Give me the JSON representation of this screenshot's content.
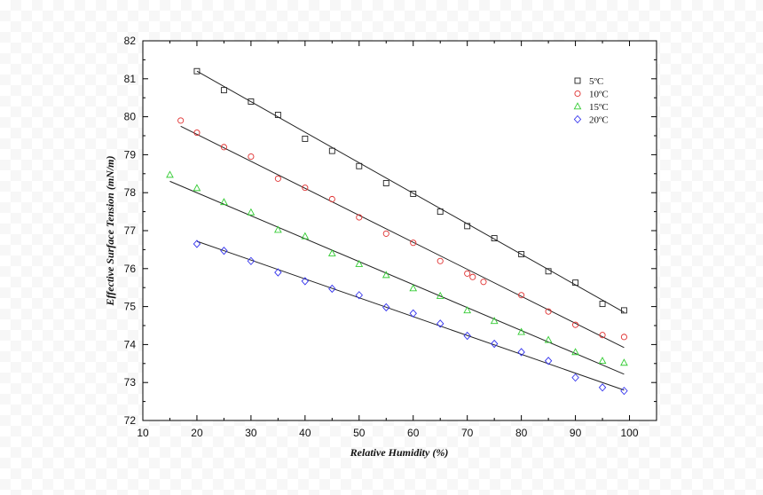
{
  "chart_data": {
    "type": "scatter",
    "xlabel": "Relative Humidity (%)",
    "ylabel": "Effective Surface Tension (mN/m)",
    "xlim": [
      10,
      105
    ],
    "ylim": [
      72,
      82
    ],
    "xticks": [
      "10",
      "20",
      "30",
      "40",
      "50",
      "60",
      "70",
      "80",
      "90",
      "100"
    ],
    "yticks": [
      "72",
      "73",
      "74",
      "75",
      "76",
      "77",
      "78",
      "79",
      "80",
      "81",
      "82"
    ],
    "legend_position": "top-right",
    "grid": false,
    "series": [
      {
        "name": "5ºC",
        "marker": "square",
        "color": "#222222",
        "x": [
          20,
          25,
          30,
          35,
          40,
          45,
          50,
          55,
          60,
          65,
          70,
          75,
          80,
          85,
          90,
          95,
          99
        ],
        "y": [
          81.2,
          80.7,
          80.4,
          80.05,
          79.42,
          79.1,
          78.7,
          78.25,
          77.97,
          77.5,
          77.12,
          76.8,
          76.38,
          75.93,
          75.63,
          75.07,
          74.9
        ],
        "fit": [
          [
            20,
            81.2
          ],
          [
            99,
            74.85
          ]
        ]
      },
      {
        "name": "10ºC",
        "marker": "circle",
        "color": "#e03030",
        "x": [
          17,
          20,
          25,
          30,
          35,
          40,
          45,
          50,
          55,
          60,
          65,
          70,
          71,
          73,
          80,
          85,
          90,
          95,
          99
        ],
        "y": [
          79.9,
          79.58,
          79.2,
          78.95,
          78.37,
          78.13,
          77.83,
          77.35,
          76.92,
          76.68,
          76.2,
          75.87,
          75.78,
          75.65,
          75.3,
          74.87,
          74.52,
          74.25,
          74.2
        ],
        "fit": [
          [
            17,
            79.75
          ],
          [
            99,
            73.92
          ]
        ]
      },
      {
        "name": "15ºC",
        "marker": "triangle",
        "color": "#33cc33",
        "x": [
          15,
          20,
          25,
          30,
          35,
          40,
          45,
          50,
          55,
          60,
          65,
          70,
          75,
          80,
          85,
          90,
          95,
          99
        ],
        "y": [
          78.47,
          78.12,
          77.75,
          77.48,
          77.02,
          76.85,
          76.4,
          76.12,
          75.83,
          75.48,
          75.28,
          74.9,
          74.62,
          74.33,
          74.12,
          73.8,
          73.57,
          73.52
        ],
        "fit": [
          [
            15,
            78.3
          ],
          [
            99,
            73.22
          ]
        ]
      },
      {
        "name": "20ºC",
        "marker": "diamond",
        "color": "#3333ee",
        "x": [
          20,
          25,
          30,
          35,
          40,
          45,
          50,
          55,
          60,
          65,
          70,
          75,
          80,
          85,
          90,
          95,
          99
        ],
        "y": [
          76.65,
          76.47,
          76.2,
          75.9,
          75.67,
          75.47,
          75.3,
          74.98,
          74.82,
          74.55,
          74.23,
          74.02,
          73.8,
          73.57,
          73.13,
          72.87,
          72.78
        ],
        "fit": [
          [
            20,
            76.72
          ],
          [
            99,
            72.8
          ]
        ]
      }
    ]
  }
}
